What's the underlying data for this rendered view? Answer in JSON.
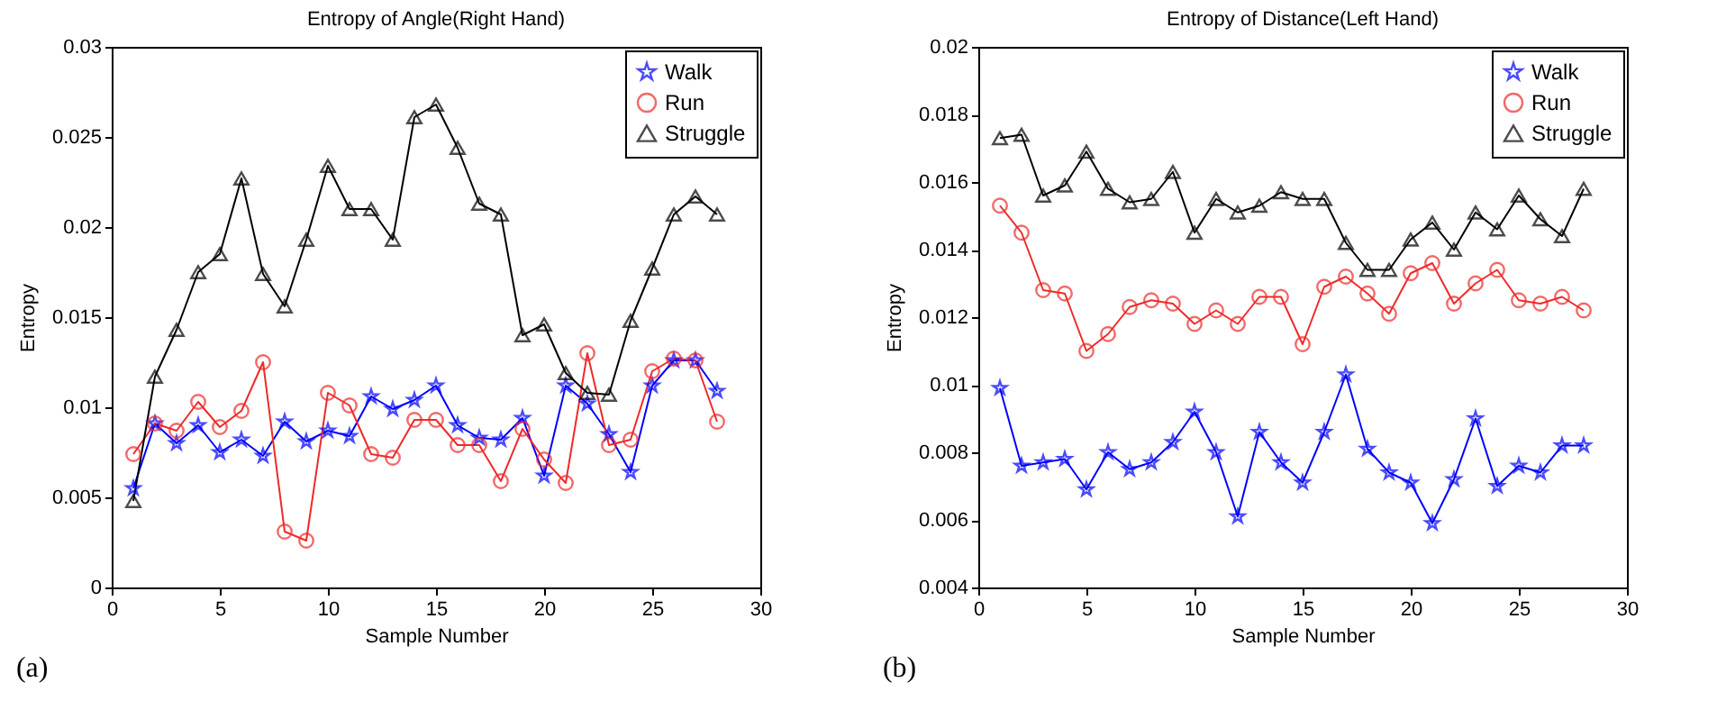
{
  "chart_data": [
    {
      "type": "line",
      "title": "Entropy of Angle(Right Hand)",
      "xlabel": "Sample Number",
      "ylabel": "Entropy",
      "annotations": [
        "(a)"
      ],
      "x": [
        1,
        2,
        3,
        4,
        5,
        6,
        7,
        8,
        9,
        10,
        11,
        12,
        13,
        14,
        15,
        16,
        17,
        18,
        19,
        20,
        21,
        22,
        23,
        24,
        25,
        26,
        27,
        28
      ],
      "xlim": [
        0,
        30
      ],
      "xticks": [
        0,
        5,
        10,
        15,
        20,
        25,
        30
      ],
      "ylim": [
        0,
        0.03
      ],
      "yticks": [
        0,
        0.005,
        0.01,
        0.015,
        0.02,
        0.025,
        0.03
      ],
      "grid": false,
      "legend": "top right",
      "line_style": "solid",
      "series": [
        {
          "name": "Walk",
          "color": "#0000ff",
          "marker": "star",
          "values": [
            0.0055,
            0.0091,
            0.008,
            0.009,
            0.0075,
            0.0082,
            0.0073,
            0.0092,
            0.0081,
            0.0087,
            0.0084,
            0.0106,
            0.0099,
            0.0104,
            0.0112,
            0.009,
            0.0083,
            0.0082,
            0.0094,
            0.0062,
            0.0112,
            0.0102,
            0.0085,
            0.0064,
            0.0112,
            0.0126,
            0.0126,
            0.0109
          ]
        },
        {
          "name": "Run",
          "color": "#ee2a2a",
          "marker": "circle",
          "values": [
            0.0074,
            0.0091,
            0.0087,
            0.0103,
            0.0089,
            0.0098,
            0.0125,
            0.0031,
            0.0026,
            0.0108,
            0.0101,
            0.0074,
            0.0072,
            0.0093,
            0.0093,
            0.0079,
            0.0079,
            0.0059,
            0.0088,
            0.0071,
            0.0058,
            0.013,
            0.0079,
            0.0082,
            0.012,
            0.0127,
            0.0126,
            0.0092
          ]
        },
        {
          "name": "Struggle",
          "color": "#000000",
          "marker": "triangle",
          "values": [
            0.0048,
            0.0117,
            0.0143,
            0.0175,
            0.0185,
            0.0227,
            0.0174,
            0.0156,
            0.0193,
            0.0234,
            0.021,
            0.021,
            0.0193,
            0.0261,
            0.0268,
            0.0244,
            0.0213,
            0.0207,
            0.014,
            0.0146,
            0.0119,
            0.0108,
            0.0107,
            0.0148,
            0.0177,
            0.0207,
            0.0217,
            0.0207
          ]
        }
      ]
    },
    {
      "type": "line",
      "title": "Entropy of Distance(Left Hand)",
      "xlabel": "Sample Number",
      "ylabel": "Entropy",
      "annotations": [
        "(b)"
      ],
      "x": [
        1,
        2,
        3,
        4,
        5,
        6,
        7,
        8,
        9,
        10,
        11,
        12,
        13,
        14,
        15,
        16,
        17,
        18,
        19,
        20,
        21,
        22,
        23,
        24,
        25,
        26,
        27,
        28
      ],
      "xlim": [
        0,
        30
      ],
      "xticks": [
        0,
        5,
        10,
        15,
        20,
        25,
        30
      ],
      "ylim": [
        0.004,
        0.02
      ],
      "yticks": [
        0.004,
        0.006,
        0.008,
        0.01,
        0.012,
        0.014,
        0.016,
        0.018,
        0.02
      ],
      "grid": false,
      "legend": "top right",
      "line_style": "solid",
      "series": [
        {
          "name": "Walk",
          "color": "#0000ff",
          "marker": "star",
          "values": [
            0.0099,
            0.0076,
            0.0077,
            0.0078,
            0.0069,
            0.008,
            0.0075,
            0.0077,
            0.0083,
            0.0092,
            0.008,
            0.0061,
            0.0086,
            0.0077,
            0.0071,
            0.0086,
            0.0103,
            0.0081,
            0.0074,
            0.0071,
            0.0059,
            0.0072,
            0.009,
            0.007,
            0.0076,
            0.0074,
            0.0082,
            0.0082
          ]
        },
        {
          "name": "Run",
          "color": "#ee2a2a",
          "marker": "circle",
          "values": [
            0.0153,
            0.0145,
            0.0128,
            0.0127,
            0.011,
            0.0115,
            0.0123,
            0.0125,
            0.0124,
            0.0118,
            0.0122,
            0.0118,
            0.0126,
            0.0126,
            0.0112,
            0.0129,
            0.0132,
            0.0127,
            0.0121,
            0.0133,
            0.0136,
            0.0124,
            0.013,
            0.0134,
            0.0125,
            0.0124,
            0.0126,
            0.0122
          ]
        },
        {
          "name": "Struggle",
          "color": "#000000",
          "marker": "triangle",
          "values": [
            0.0173,
            0.0174,
            0.0156,
            0.0159,
            0.0169,
            0.0158,
            0.0154,
            0.0155,
            0.0163,
            0.0145,
            0.0155,
            0.0151,
            0.0153,
            0.0157,
            0.0155,
            0.0155,
            0.0142,
            0.0134,
            0.0134,
            0.0143,
            0.0148,
            0.014,
            0.0151,
            0.0146,
            0.0156,
            0.0149,
            0.0144,
            0.0158
          ]
        }
      ]
    }
  ]
}
